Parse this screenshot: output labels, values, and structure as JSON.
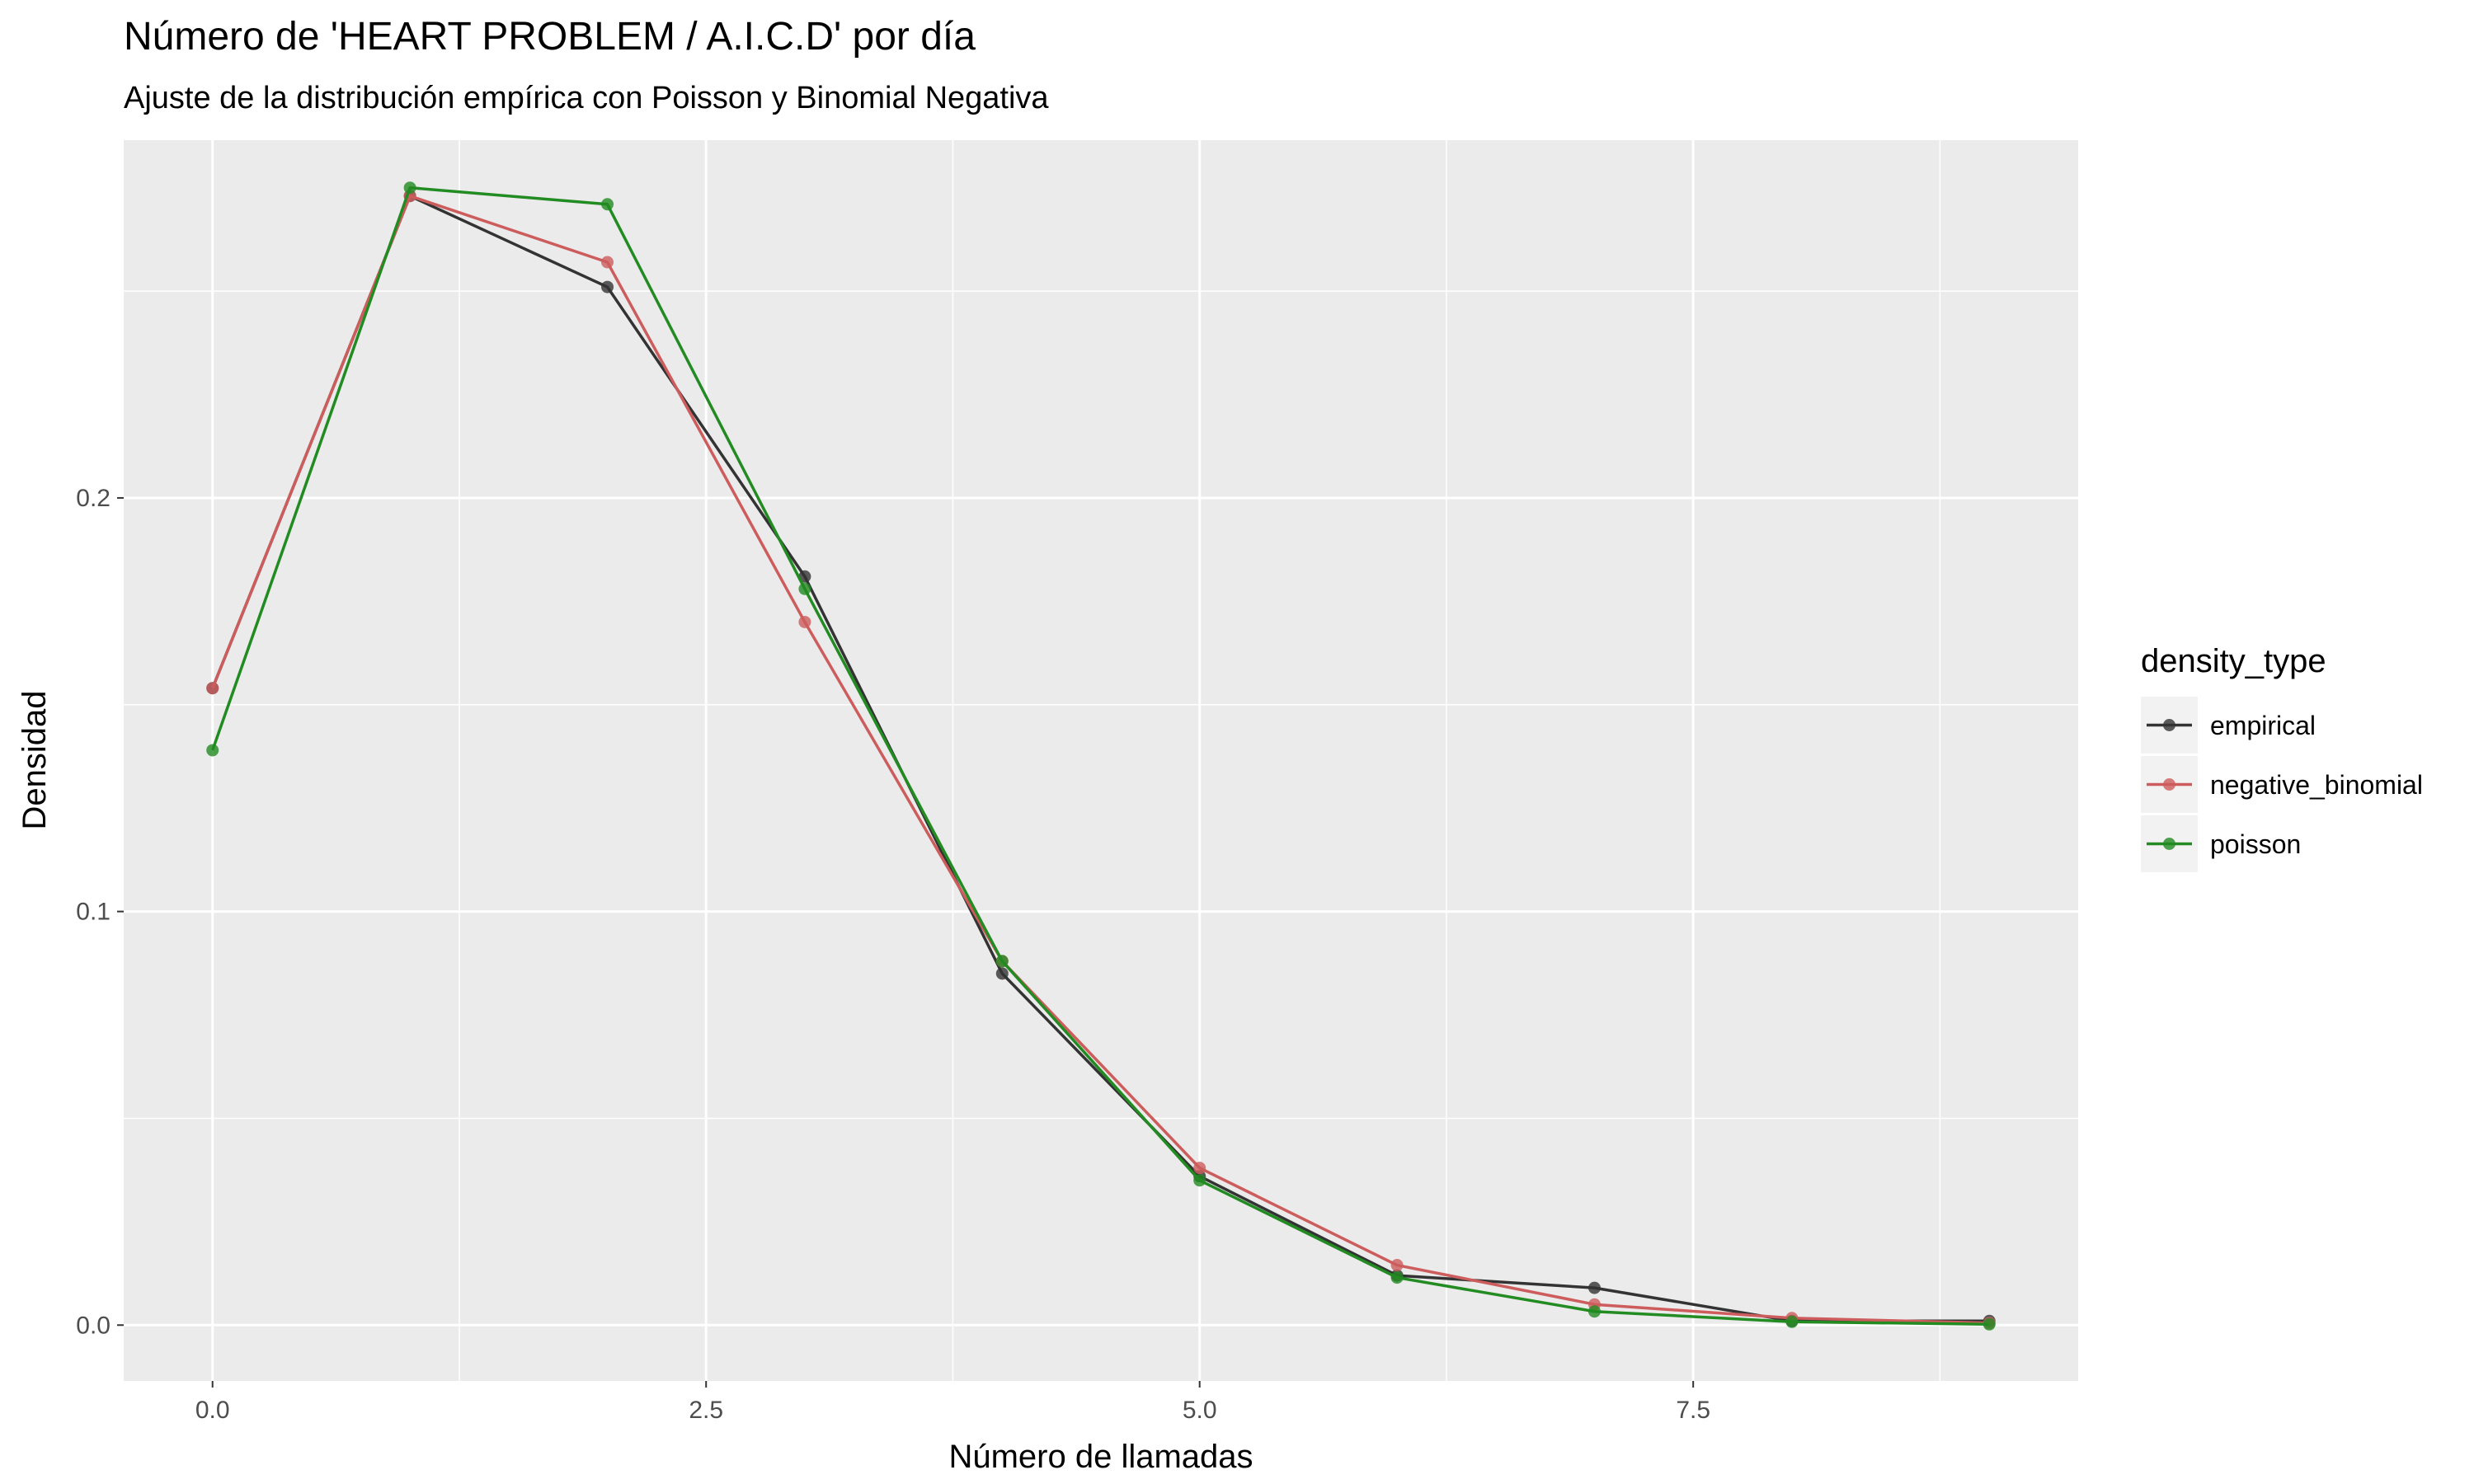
{
  "chart_data": {
    "type": "line",
    "title": "Número de 'HEART PROBLEM / A.I.C.D' por día",
    "subtitle": "Ajuste de la distribución empírica con Poisson y Binomial Negativa",
    "xlabel": "Número de llamadas",
    "ylabel": "Densidad",
    "xlim": [
      -0.45,
      9.45
    ],
    "ylim": [
      -0.0135,
      0.2865
    ],
    "x_ticks": [
      0,
      2.5,
      5,
      7.5
    ],
    "x_tick_labels": [
      "0.0",
      "2.5",
      "5.0",
      "7.5"
    ],
    "y_ticks": [
      0,
      0.1,
      0.2
    ],
    "y_tick_labels": [
      "0.0",
      "0.1",
      "0.2"
    ],
    "grid": true,
    "legend": {
      "title": "density_type",
      "position": "right"
    },
    "x": [
      0,
      1,
      2,
      3,
      4,
      5,
      6,
      7,
      8,
      9
    ],
    "series": [
      {
        "name": "empirical",
        "color": "#333333",
        "values": [
          0.154,
          0.273,
          0.251,
          0.181,
          0.085,
          0.036,
          0.012,
          0.009,
          0.001,
          0.001
        ]
      },
      {
        "name": "negative_binomial",
        "color": "#cd5c5c",
        "values": [
          0.154,
          0.273,
          0.257,
          0.17,
          0.088,
          0.038,
          0.0145,
          0.005,
          0.0017,
          0.0005
        ]
      },
      {
        "name": "poisson",
        "color": "#228b22",
        "values": [
          0.139,
          0.275,
          0.271,
          0.178,
          0.088,
          0.035,
          0.0115,
          0.0033,
          0.0008,
          0.0002
        ]
      }
    ]
  }
}
